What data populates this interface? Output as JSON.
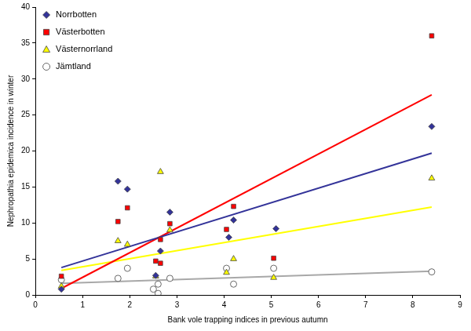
{
  "chart_data": {
    "type": "scatter",
    "x_label": "Bank vole trapping indices in previous autumn",
    "y_label": "Nephropathia epidemica incidence in winter",
    "xlim": [
      0,
      9
    ],
    "xticks": [
      0,
      1,
      2,
      3,
      4,
      5,
      6,
      7,
      8,
      9
    ],
    "ylim": [
      0,
      40
    ],
    "yticks": [
      0,
      5,
      10,
      15,
      20,
      25,
      30,
      35,
      40
    ],
    "grid": false,
    "legend": "upper left",
    "series": [
      {
        "name": "Norrbotten",
        "color": "#333399",
        "marker": "diamond",
        "x": [
          0.55,
          1.75,
          1.95,
          2.55,
          2.65,
          2.85,
          4.1,
          4.2,
          5.1,
          8.4
        ],
        "values": [
          0.8,
          15.8,
          14.7,
          2.7,
          6.1,
          11.5,
          8.0,
          10.4,
          9.2,
          23.4
        ],
        "trend_x": [
          0.55,
          8.4
        ],
        "trend_y": [
          3.8,
          19.7
        ]
      },
      {
        "name": "Västerbotten",
        "color": "#ff0000",
        "marker": "square",
        "x": [
          0.55,
          1.75,
          1.95,
          2.55,
          2.65,
          2.65,
          2.85,
          4.05,
          4.2,
          5.05,
          8.4
        ],
        "values": [
          2.6,
          10.2,
          12.1,
          4.7,
          4.4,
          7.7,
          9.9,
          9.1,
          12.3,
          5.1,
          36.0
        ],
        "trend_x": [
          0.55,
          8.4
        ],
        "trend_y": [
          0.9,
          27.8
        ]
      },
      {
        "name": "Västernorrland",
        "color": "#ffff00",
        "marker": "triangle",
        "x": [
          0.55,
          1.75,
          1.95,
          2.55,
          2.65,
          2.85,
          4.05,
          4.2,
          5.05,
          8.4
        ],
        "values": [
          1.2,
          7.5,
          7.0,
          2.6,
          17.1,
          9.0,
          3.1,
          5.0,
          2.4,
          16.2
        ],
        "trend_x": [
          0.55,
          8.4
        ],
        "trend_y": [
          3.4,
          12.2
        ]
      },
      {
        "name": "Jämtland",
        "color": "#a8a8a8",
        "marker": "circle",
        "x": [
          0.55,
          1.75,
          1.95,
          2.5,
          2.6,
          2.6,
          2.85,
          4.05,
          4.2,
          5.05,
          8.4
        ],
        "values": [
          2.1,
          2.3,
          3.7,
          0.8,
          1.5,
          0.2,
          2.3,
          3.7,
          1.5,
          3.7,
          3.2
        ],
        "trend_x": [
          0.55,
          8.4
        ],
        "trend_y": [
          1.6,
          3.3
        ]
      }
    ]
  }
}
